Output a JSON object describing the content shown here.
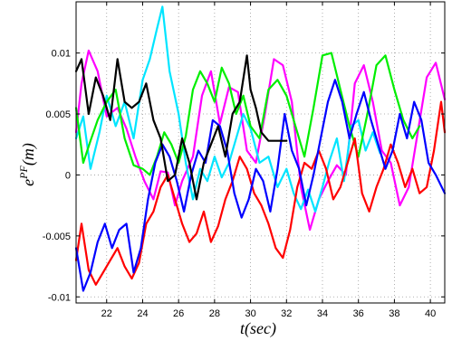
{
  "chart_data": {
    "type": "line",
    "xlabel": "t(sec)",
    "ylabel_base": "e",
    "ylabel_sup": "PF",
    "ylabel_tail": "(m)",
    "xlim": [
      20.3,
      40.8
    ],
    "ylim": [
      -0.0105,
      0.0142
    ],
    "xticks": [
      22,
      24,
      26,
      28,
      30,
      32,
      34,
      36,
      38,
      40
    ],
    "xtick_labels": [
      "22",
      "24",
      "26",
      "28",
      "30",
      "32",
      "34",
      "36",
      "38",
      "40"
    ],
    "yticks": [
      -0.01,
      -0.005,
      0,
      0.005,
      0.01
    ],
    "ytick_labels": [
      "-0.01",
      "-0.005",
      "0",
      "0.005",
      "0.01"
    ],
    "grid": true,
    "legend": "none",
    "series": [
      {
        "color": "#ff00ff",
        "x": [
          20.3,
          20.6,
          21.0,
          21.5,
          22.0,
          22.6,
          23.1,
          23.6,
          24.1,
          24.6,
          25.0,
          25.4,
          25.8,
          26.2,
          26.8,
          27.3,
          27.8,
          28.3,
          28.8,
          29.3,
          29.8,
          30.3,
          30.8,
          31.3,
          31.8,
          32.3,
          32.8,
          33.3,
          33.8,
          34.3,
          34.8,
          35.3,
          35.8,
          36.3,
          36.8,
          37.3,
          37.8,
          38.3,
          38.8,
          39.3,
          39.8,
          40.3,
          40.8
        ],
        "y": [
          0.0035,
          0.0075,
          0.0102,
          0.0085,
          0.0048,
          0.0055,
          0.0038,
          0.0015,
          -0.0005,
          -0.002,
          0.0003,
          0.0002,
          -0.0025,
          -0.0005,
          0.0015,
          0.0065,
          0.0085,
          0.0042,
          0.0072,
          0.0068,
          0.002,
          0.001,
          0.005,
          0.0095,
          0.009,
          0.006,
          -0.001,
          -0.0045,
          -0.002,
          -0.0005,
          0.0008,
          0.0,
          0.0075,
          0.009,
          0.006,
          0.002,
          0.001,
          -0.0025,
          -0.001,
          0.0035,
          0.008,
          0.0092,
          0.0062
        ]
      },
      {
        "color": "#00e5ff",
        "x": [
          20.3,
          20.7,
          21.1,
          21.6,
          22.0,
          22.5,
          23.0,
          23.5,
          24.0,
          24.4,
          24.8,
          25.1,
          25.5,
          26.0,
          26.4,
          26.8,
          27.2,
          27.6,
          28.0,
          28.4,
          28.8,
          29.2,
          29.6,
          30.0,
          30.5,
          31.0,
          31.5,
          32.0,
          32.4,
          32.8,
          33.2,
          33.6,
          34.0,
          34.4,
          34.8,
          35.2,
          35.6,
          36.0,
          36.4,
          36.8,
          37.2
        ],
        "y": [
          0.003,
          0.0048,
          0.0005,
          0.0035,
          0.0065,
          0.004,
          0.006,
          0.003,
          0.0078,
          0.0095,
          0.012,
          0.0138,
          0.0085,
          0.005,
          0.001,
          -0.002,
          0.0005,
          -0.0005,
          0.0015,
          -0.0002,
          0.001,
          0.003,
          0.005,
          0.0038,
          0.001,
          0.0015,
          -0.001,
          0.0005,
          -0.0015,
          -0.0028,
          -0.0012,
          -0.003,
          -0.001,
          0.0012,
          0.003,
          -0.0005,
          0.004,
          0.0045,
          0.002,
          0.0035,
          0.0018
        ]
      },
      {
        "color": "#00ee00",
        "x": [
          20.3,
          20.7,
          21.1,
          21.5,
          22.0,
          22.5,
          23.0,
          23.5,
          24.0,
          24.4,
          24.8,
          25.2,
          25.6,
          26.0,
          26.4,
          26.8,
          27.2,
          27.6,
          28.0,
          28.4,
          28.8,
          29.2,
          29.6,
          30.0,
          30.5,
          31.0,
          31.5,
          32.0,
          32.5,
          33.0,
          33.5,
          34.0,
          34.5,
          35.0,
          35.5,
          36.0,
          36.5,
          37.0,
          37.5,
          38.0,
          38.5,
          39.0,
          39.4
        ],
        "y": [
          0.0055,
          0.001,
          0.0028,
          0.0045,
          0.006,
          0.007,
          0.003,
          0.0008,
          0.0005,
          0.0,
          0.0015,
          0.0035,
          0.0025,
          0.001,
          0.0032,
          0.007,
          0.0085,
          0.0075,
          0.006,
          0.0088,
          0.0075,
          0.005,
          0.0065,
          0.004,
          0.003,
          0.007,
          0.0078,
          0.0065,
          0.004,
          0.0015,
          0.0055,
          0.0098,
          0.01,
          0.007,
          0.004,
          0.0015,
          0.005,
          0.009,
          0.0098,
          0.007,
          0.0045,
          0.003,
          0.004
        ]
      },
      {
        "color": "#ff0000",
        "x": [
          20.3,
          20.6,
          21.0,
          21.4,
          21.8,
          22.2,
          22.6,
          23.0,
          23.4,
          23.8,
          24.2,
          24.6,
          25.0,
          25.4,
          25.8,
          26.2,
          26.6,
          27.0,
          27.4,
          27.8,
          28.2,
          28.6,
          29.0,
          29.4,
          29.8,
          30.2,
          30.6,
          31.0,
          31.4,
          31.8,
          32.2,
          32.6,
          33.0,
          33.4,
          33.8,
          34.2,
          34.6,
          35.0,
          35.4,
          35.8,
          36.2,
          36.6,
          37.0,
          37.4,
          37.8,
          38.2,
          38.6,
          39.0,
          39.4,
          39.8,
          40.2,
          40.6,
          40.8
        ],
        "y": [
          -0.007,
          -0.004,
          -0.0078,
          -0.009,
          -0.008,
          -0.007,
          -0.006,
          -0.0075,
          -0.0085,
          -0.0072,
          -0.004,
          -0.003,
          -0.001,
          0.0,
          -0.002,
          -0.004,
          -0.0055,
          -0.0048,
          -0.003,
          -0.0055,
          -0.0042,
          -0.002,
          -0.0005,
          0.0015,
          0.0005,
          -0.0015,
          -0.0025,
          -0.004,
          -0.006,
          -0.0068,
          -0.0045,
          -0.001,
          0.001,
          0.0005,
          0.002,
          0.0005,
          -0.002,
          -0.001,
          0.001,
          0.003,
          -0.0015,
          -0.003,
          -0.001,
          0.0005,
          0.0025,
          0.001,
          -0.001,
          0.0005,
          -0.0015,
          -0.001,
          0.002,
          0.006,
          0.0035
        ]
      },
      {
        "color": "#0000ff",
        "x": [
          20.3,
          20.7,
          21.1,
          21.5,
          21.9,
          22.3,
          22.7,
          23.1,
          23.5,
          23.9,
          24.3,
          24.7,
          25.1,
          25.5,
          25.9,
          26.3,
          26.7,
          27.1,
          27.5,
          27.9,
          28.3,
          28.7,
          29.1,
          29.5,
          29.9,
          30.3,
          30.7,
          31.1,
          31.5,
          31.9,
          32.3,
          32.7,
          33.1,
          33.5,
          33.9,
          34.3,
          34.7,
          35.1,
          35.5,
          35.9,
          36.3,
          36.7,
          37.1,
          37.5,
          37.9,
          38.3,
          38.7,
          39.1,
          39.5,
          39.9,
          40.3,
          40.8
        ],
        "y": [
          -0.006,
          -0.0095,
          -0.008,
          -0.0055,
          -0.004,
          -0.006,
          -0.0045,
          -0.004,
          -0.008,
          -0.006,
          -0.002,
          0.001,
          0.0025,
          0.0015,
          -0.0005,
          -0.003,
          0.0,
          0.002,
          0.001,
          0.0045,
          0.004,
          0.002,
          -0.0015,
          -0.0035,
          -0.002,
          0.0005,
          -0.0005,
          -0.003,
          0.0005,
          0.005,
          0.002,
          0.0005,
          -0.0025,
          0.0,
          0.003,
          0.006,
          0.0078,
          0.006,
          0.003,
          0.005,
          0.0068,
          0.0045,
          0.0025,
          0.0005,
          0.002,
          0.005,
          0.003,
          0.006,
          0.0045,
          0.001,
          0.0,
          -0.0015
        ]
      },
      {
        "color": "#000000",
        "x": [
          20.3,
          20.6,
          21.0,
          21.4,
          21.8,
          22.2,
          22.6,
          23.0,
          23.4,
          23.8,
          24.2,
          24.6,
          25.0,
          25.4,
          25.8,
          26.2,
          26.6,
          27.0,
          27.4,
          27.8,
          28.2,
          28.6,
          29.0,
          29.4,
          29.8,
          30.0,
          30.3,
          30.6,
          31.0,
          32.0
        ],
        "y": [
          0.0085,
          0.0095,
          0.005,
          0.008,
          0.0065,
          0.0045,
          0.0095,
          0.006,
          0.0055,
          0.006,
          0.0075,
          0.0045,
          0.003,
          -0.0005,
          0.0,
          0.003,
          0.001,
          -0.002,
          0.001,
          0.0025,
          0.004,
          0.0015,
          0.005,
          0.006,
          0.0098,
          0.007,
          0.0055,
          0.0035,
          0.0028,
          0.0028
        ]
      }
    ]
  }
}
